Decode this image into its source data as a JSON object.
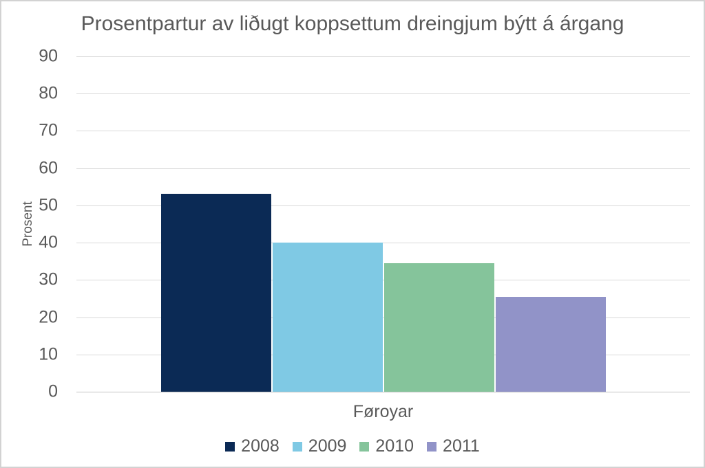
{
  "chart_data": {
    "type": "bar",
    "title": "Prosentpartur av liðugt koppsettum dreingjum býtt á árgang",
    "ylabel": "Prosent",
    "xlabel": "",
    "categories": [
      "Føroyar"
    ],
    "series": [
      {
        "name": "2008",
        "values": [
          53.2
        ],
        "color": "#0B2A55"
      },
      {
        "name": "2009",
        "values": [
          40.1
        ],
        "color": "#7FC9E4"
      },
      {
        "name": "2010",
        "values": [
          34.4
        ],
        "color": "#85C49B"
      },
      {
        "name": "2011",
        "values": [
          25.4
        ],
        "color": "#9193C8"
      }
    ],
    "ylim": [
      0,
      90
    ],
    "ytick_step": 10,
    "grid": true,
    "legend_position": "bottom",
    "text_color": "#595959",
    "gridline_color": "#D9D9D9",
    "axis_line_color": "#C3C3C3",
    "frame_border_color": "#D2D2D2"
  }
}
